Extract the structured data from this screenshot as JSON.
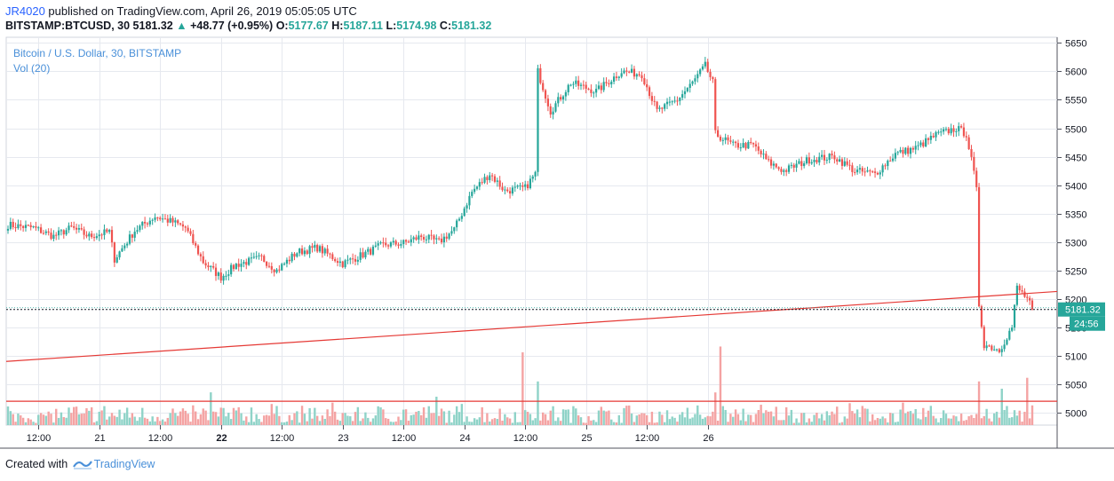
{
  "header": {
    "user": "JR4020",
    "published": " published on TradingView.com, April 26, 2019 05:05:05 UTC"
  },
  "quote": {
    "symbol": "BITSTAMP:BTCUSD, 30",
    "last": "5181.32",
    "change": "+48.77 (+0.95%)",
    "open_label": "O:",
    "open": "5177.67",
    "high_label": "H:",
    "high": "5187.11",
    "low_label": "L:",
    "low": "5174.98",
    "close_label": "C:",
    "close": "5181.32"
  },
  "legend": {
    "title": "Bitcoin / U.S. Dollar, 30, BITSTAMP",
    "volume": "Vol (20)"
  },
  "footer": {
    "prefix": "Created with",
    "brand": "TradingView"
  },
  "colors": {
    "up": "#26a69a",
    "down": "#ef5350",
    "vol_up": "#8fd3c8",
    "vol_down": "#f4a3a3",
    "line": "#e53935",
    "grid": "#e6e9ef",
    "accent": "#2962ff"
  },
  "chart_data": {
    "type": "candlestick",
    "y_axis": {
      "ticks": [
        5000,
        5050,
        5100,
        5150,
        5200,
        5250,
        5300,
        5350,
        5400,
        5450,
        5500,
        5550,
        5600,
        5650
      ],
      "range": [
        4978,
        5660
      ]
    },
    "x_axis": {
      "ticks": [
        "12:00",
        "21",
        "12:00",
        "22",
        "12:00",
        "23",
        "12:00",
        "24",
        "12:00",
        "25",
        "12:00",
        "26"
      ]
    },
    "price_label": "5181.32",
    "countdown_label": "24:56",
    "last_price": 5181.32,
    "horizontal_line": 5020,
    "trend_line": {
      "start_price": 5090,
      "end_price": 5213
    },
    "anchors": [
      [
        0,
        5330
      ],
      [
        10,
        5325
      ],
      [
        18,
        5310
      ],
      [
        25,
        5325
      ],
      [
        32,
        5310
      ],
      [
        40,
        5318
      ],
      [
        42,
        5270
      ],
      [
        50,
        5320
      ],
      [
        58,
        5345
      ],
      [
        65,
        5335
      ],
      [
        70,
        5325
      ],
      [
        77,
        5265
      ],
      [
        84,
        5238
      ],
      [
        90,
        5260
      ],
      [
        100,
        5272
      ],
      [
        106,
        5250
      ],
      [
        114,
        5282
      ],
      [
        122,
        5290
      ],
      [
        132,
        5262
      ],
      [
        140,
        5278
      ],
      [
        148,
        5295
      ],
      [
        156,
        5298
      ],
      [
        163,
        5310
      ],
      [
        170,
        5300
      ],
      [
        176,
        5322
      ],
      [
        183,
        5388
      ],
      [
        190,
        5420
      ],
      [
        196,
        5390
      ],
      [
        204,
        5395
      ],
      [
        208,
        5420
      ],
      [
        209,
        5600
      ],
      [
        214,
        5530
      ],
      [
        222,
        5580
      ],
      [
        232,
        5565
      ],
      [
        242,
        5600
      ],
      [
        250,
        5595
      ],
      [
        256,
        5530
      ],
      [
        264,
        5550
      ],
      [
        270,
        5580
      ],
      [
        275,
        5610
      ],
      [
        278,
        5580
      ],
      [
        279,
        5490
      ],
      [
        286,
        5470
      ],
      [
        294,
        5470
      ],
      [
        300,
        5440
      ],
      [
        306,
        5425
      ],
      [
        316,
        5445
      ],
      [
        326,
        5450
      ],
      [
        334,
        5425
      ],
      [
        342,
        5420
      ],
      [
        350,
        5455
      ],
      [
        358,
        5465
      ],
      [
        366,
        5488
      ],
      [
        374,
        5500
      ],
      [
        378,
        5490
      ],
      [
        381,
        5420
      ],
      [
        382,
        5390
      ],
      [
        383,
        5190
      ],
      [
        385,
        5120
      ],
      [
        391,
        5110
      ],
      [
        396,
        5150
      ],
      [
        398,
        5220
      ],
      [
        402,
        5200
      ],
      [
        404,
        5181.32
      ]
    ],
    "volumes": {
      "base_max": 0.3,
      "spikes": [
        [
          80,
          0.45
        ],
        [
          169,
          0.39
        ],
        [
          203,
          1.0
        ],
        [
          281,
          1.08
        ],
        [
          392,
          0.5
        ],
        [
          402,
          0.65
        ]
      ]
    },
    "candle_count": 405
  }
}
